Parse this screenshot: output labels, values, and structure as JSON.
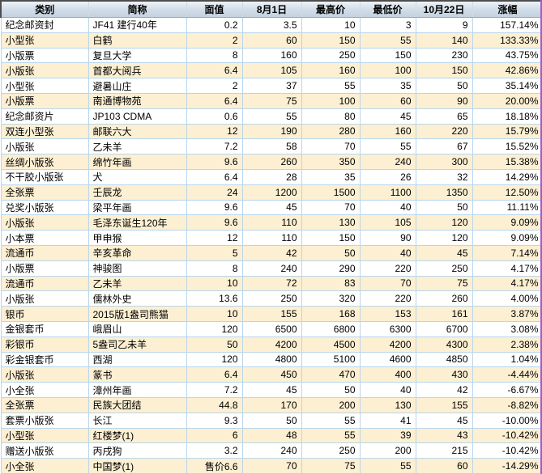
{
  "table": {
    "columns": [
      {
        "key": "category",
        "label": "类别",
        "align": "left"
      },
      {
        "key": "name",
        "label": "简称",
        "align": "left"
      },
      {
        "key": "face_value",
        "label": "面值",
        "align": "right"
      },
      {
        "key": "aug_1",
        "label": "8月1日",
        "align": "right"
      },
      {
        "key": "high",
        "label": "最高价",
        "align": "right"
      },
      {
        "key": "low",
        "label": "最低价",
        "align": "right"
      },
      {
        "key": "oct_22",
        "label": "10月22日",
        "align": "right"
      },
      {
        "key": "change",
        "label": "涨幅",
        "align": "right"
      }
    ],
    "rows": [
      [
        "纪念邮资封",
        "JF41 建行40年",
        "0.2",
        "3.5",
        "10",
        "3",
        "9",
        "157.14%"
      ],
      [
        "小型张",
        "白鹤",
        "2",
        "60",
        "150",
        "55",
        "140",
        "133.33%"
      ],
      [
        "小版票",
        "复旦大学",
        "8",
        "160",
        "250",
        "150",
        "230",
        "43.75%"
      ],
      [
        "小版张",
        "首都大阅兵",
        "6.4",
        "105",
        "160",
        "100",
        "150",
        "42.86%"
      ],
      [
        "小型张",
        "避暑山庄",
        "2",
        "37",
        "55",
        "35",
        "50",
        "35.14%"
      ],
      [
        "小版票",
        "南通博物苑",
        "6.4",
        "75",
        "100",
        "60",
        "90",
        "20.00%"
      ],
      [
        "纪念邮资片",
        "JP103 CDMA",
        "0.6",
        "55",
        "80",
        "45",
        "65",
        "18.18%"
      ],
      [
        "双连小型张",
        "邮联六大",
        "12",
        "190",
        "280",
        "160",
        "220",
        "15.79%"
      ],
      [
        "小版张",
        "乙未羊",
        "7.2",
        "58",
        "70",
        "55",
        "67",
        "15.52%"
      ],
      [
        "丝绸小版张",
        "绵竹年画",
        "9.6",
        "260",
        "350",
        "240",
        "300",
        "15.38%"
      ],
      [
        "不干胶小版张",
        "犬",
        "6.4",
        "28",
        "35",
        "26",
        "32",
        "14.29%"
      ],
      [
        "全张票",
        "壬辰龙",
        "24",
        "1200",
        "1500",
        "1100",
        "1350",
        "12.50%"
      ],
      [
        "兑奖小版张",
        "梁平年画",
        "9.6",
        "45",
        "70",
        "40",
        "50",
        "11.11%"
      ],
      [
        "小版张",
        "毛泽东诞生120年",
        "9.6",
        "110",
        "130",
        "105",
        "120",
        "9.09%"
      ],
      [
        "小本票",
        "甲申猴",
        "12",
        "110",
        "150",
        "90",
        "120",
        "9.09%"
      ],
      [
        "流通币",
        "辛亥革命",
        "5",
        "42",
        "50",
        "40",
        "45",
        "7.14%"
      ],
      [
        "小版票",
        "神骏图",
        "8",
        "240",
        "290",
        "220",
        "250",
        "4.17%"
      ],
      [
        "流通币",
        "乙未羊",
        "10",
        "72",
        "83",
        "70",
        "75",
        "4.17%"
      ],
      [
        "小版张",
        "儒林外史",
        "13.6",
        "250",
        "320",
        "220",
        "260",
        "4.00%"
      ],
      [
        "银币",
        "2015版1盎司熊猫",
        "10",
        "155",
        "168",
        "153",
        "161",
        "3.87%"
      ],
      [
        "金银套币",
        "峨眉山",
        "120",
        "6500",
        "6800",
        "6300",
        "6700",
        "3.08%"
      ],
      [
        "彩银币",
        "5盎司乙未羊",
        "50",
        "4200",
        "4500",
        "4200",
        "4300",
        "2.38%"
      ],
      [
        "彩金银套币",
        "西湖",
        "120",
        "4800",
        "5100",
        "4600",
        "4850",
        "1.04%"
      ],
      [
        "小版张",
        "篆书",
        "6.4",
        "450",
        "470",
        "400",
        "430",
        "-4.44%"
      ],
      [
        "小全张",
        "漳州年画",
        "7.2",
        "45",
        "50",
        "40",
        "42",
        "-6.67%"
      ],
      [
        "全张票",
        "民族大团结",
        "44.8",
        "170",
        "200",
        "130",
        "155",
        "-8.82%"
      ],
      [
        "套票小版张",
        "长江",
        "9.3",
        "50",
        "55",
        "41",
        "45",
        "-10.00%"
      ],
      [
        "小型张",
        "红楼梦(1)",
        "6",
        "48",
        "55",
        "39",
        "43",
        "-10.42%"
      ],
      [
        "赠送小版张",
        "丙戌狗",
        "3.2",
        "240",
        "250",
        "200",
        "215",
        "-10.42%"
      ],
      [
        "小全张",
        "中国梦(1)",
        "售价6.6",
        "70",
        "75",
        "55",
        "60",
        "-14.29%"
      ]
    ]
  },
  "colors": {
    "row_alt_background": "#fcefd2",
    "grid_line": "#b9d6ea",
    "header_gradient_top": "#eef2f7",
    "header_gradient_bottom": "#c3d1e0",
    "header_frame_dark": "#4d4d4d",
    "right_edge_line": "#a05cc8",
    "text": "#000000"
  }
}
